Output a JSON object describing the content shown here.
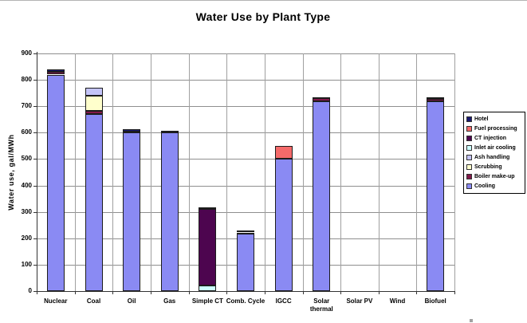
{
  "title": "Water Use by Plant Type",
  "chart_data": {
    "type": "bar",
    "stacked": true,
    "title": "Water Use by Plant Type",
    "xlabel": "",
    "ylabel": "Water use, gal/MWh",
    "ylim": [
      0,
      900
    ],
    "ytick_step": 100,
    "ytick_labels": [
      "0",
      "100",
      "200",
      "300",
      "400",
      "500",
      "600",
      "700",
      "800",
      "900"
    ],
    "grid": true,
    "legend_position": "right",
    "categories": [
      "Nuclear",
      "Coal",
      "Oil",
      "Gas",
      "Simple CT",
      "Comb. Cycle",
      "IGCC",
      "Solar\nthermal",
      "Solar PV",
      "Wind",
      "Biofuel"
    ],
    "series": [
      {
        "name": "Cooling",
        "color": "#8a8af3",
        "values": [
          820,
          670,
          600,
          600,
          0,
          218,
          500,
          720,
          0,
          0,
          718
        ]
      },
      {
        "name": "Boiler make-up",
        "color": "#82194a",
        "values": [
          10,
          13,
          5,
          8,
          0,
          0,
          0,
          10,
          0,
          0,
          10
        ]
      },
      {
        "name": "Scrubbing",
        "color": "#ffffcc",
        "values": [
          0,
          57,
          0,
          0,
          0,
          0,
          0,
          0,
          0,
          0,
          0
        ]
      },
      {
        "name": "Ash handling",
        "color": "#c4c4f8",
        "values": [
          0,
          30,
          0,
          0,
          0,
          0,
          0,
          0,
          0,
          0,
          0
        ]
      },
      {
        "name": "Inlet air cooling",
        "color": "#ccffff",
        "values": [
          0,
          0,
          0,
          0,
          20,
          4,
          0,
          0,
          0,
          0,
          0
        ]
      },
      {
        "name": "CT injection",
        "color": "#4d054f",
        "values": [
          0,
          0,
          0,
          0,
          290,
          0,
          0,
          0,
          0,
          0,
          0
        ]
      },
      {
        "name": "Fuel processing",
        "color": "#f56a6a",
        "values": [
          0,
          0,
          0,
          0,
          0,
          0,
          50,
          0,
          0,
          0,
          0
        ]
      },
      {
        "name": "Hotel",
        "color": "#191970",
        "values": [
          10,
          0,
          8,
          0,
          7,
          8,
          0,
          5,
          0,
          0,
          7
        ]
      }
    ],
    "legend": [
      "Hotel",
      "Fuel processing",
      "CT injection",
      "Inlet air cooling",
      "Ash handling",
      "Scrubbing",
      "Boiler make-up",
      "Cooling"
    ]
  }
}
